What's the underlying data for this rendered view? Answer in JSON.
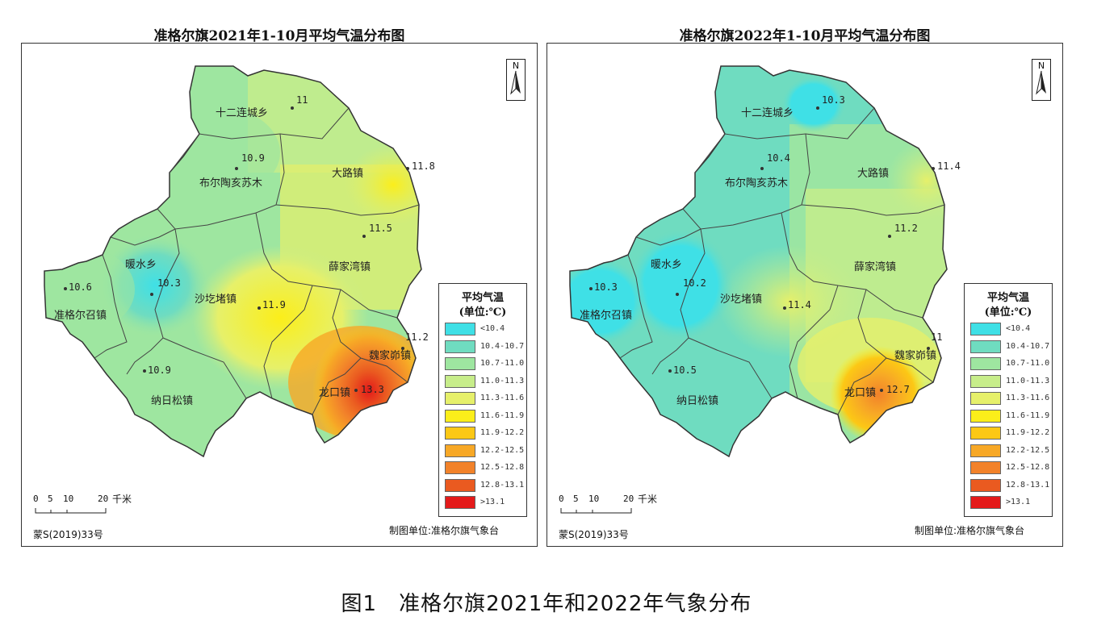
{
  "caption": "图1　准格尔旗2021年和2022年气象分布",
  "legend": {
    "title1": "平均气温",
    "title2": "(单位:℃)",
    "classes": [
      {
        "label": "<10.4",
        "color": "#3fe0e6"
      },
      {
        "label": "10.4-10.7",
        "color": "#6fdcc0"
      },
      {
        "label": "10.7-11.0",
        "color": "#9ee6a0"
      },
      {
        "label": "11.0-11.3",
        "color": "#c7ed8a"
      },
      {
        "label": "11.3-11.6",
        "color": "#e6f06a"
      },
      {
        "label": "11.6-11.9",
        "color": "#fbee1a"
      },
      {
        "label": "11.9-12.2",
        "color": "#fcc815"
      },
      {
        "label": "12.2-12.5",
        "color": "#f7a826"
      },
      {
        "label": "12.5-12.8",
        "color": "#f2822a"
      },
      {
        "label": "12.8-13.1",
        "color": "#ea5a20"
      },
      {
        "label": ">13.1",
        "color": "#e41a1a"
      }
    ]
  },
  "north_label": "N",
  "scale": {
    "ticks": [
      "0",
      "5",
      "10",
      "20"
    ],
    "unit": "千米"
  },
  "map_number": "蒙S(2019)33号",
  "credit": "制图单位:准格尔旗气象台",
  "maps": [
    {
      "title": "准格尔旗2021年1-10月平均气温分布图",
      "places": [
        "十二连城乡",
        "布尔陶亥苏木",
        "大路镇",
        "暖水乡",
        "准格尔召镇",
        "沙圪堵镇",
        "薛家湾镇",
        "魏家峁镇",
        "纳日松镇",
        "龙口镇"
      ],
      "values": [
        "11",
        "10.9",
        "11.8",
        "11.5",
        "10.3",
        "10.6",
        "11.9",
        "11.2",
        "10.9",
        "13.3"
      ]
    },
    {
      "title": "准格尔旗2022年1-10月平均气温分布图",
      "places": [
        "十二连城乡",
        "布尔陶亥苏木",
        "大路镇",
        "暖水乡",
        "准格尔召镇",
        "沙圪堵镇",
        "薛家湾镇",
        "魏家峁镇",
        "纳日松镇",
        "龙口镇"
      ],
      "values": [
        "10.3",
        "10.4",
        "11.4",
        "11.2",
        "10.2",
        "10.3",
        "11.4",
        "11",
        "10.5",
        "12.7"
      ]
    }
  ]
}
